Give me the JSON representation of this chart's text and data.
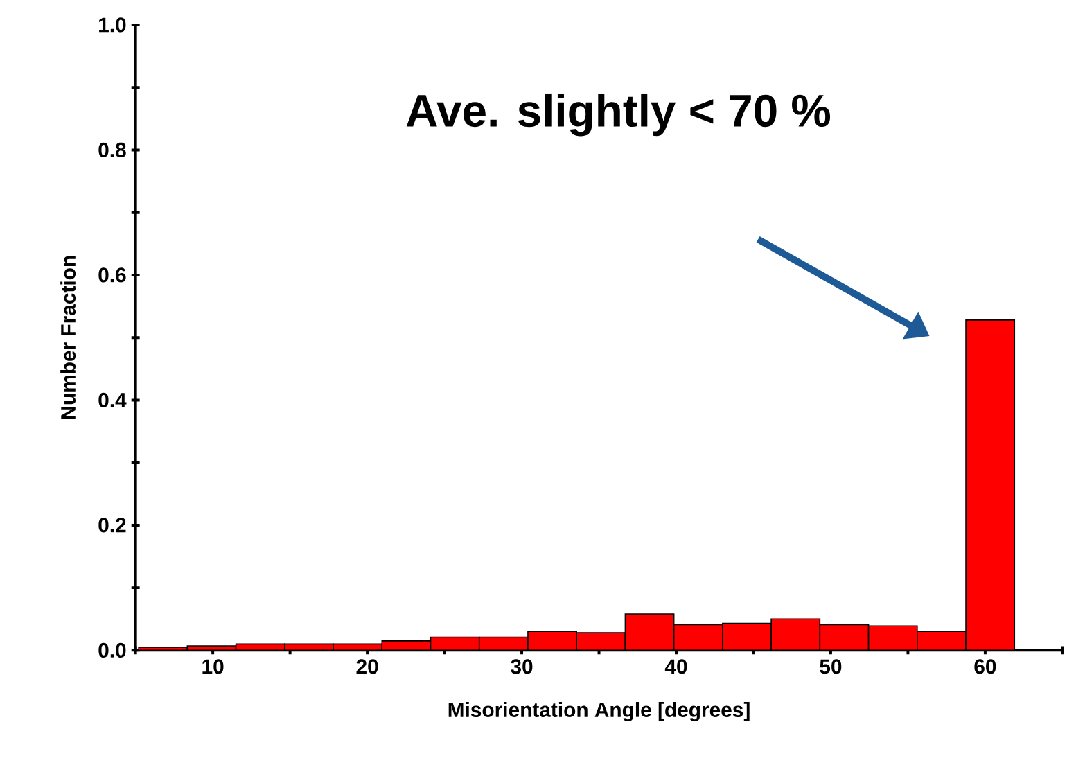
{
  "chart_data": {
    "type": "histogram",
    "xlabel": "Misorientation Angle [degrees]",
    "ylabel": "Number Fraction",
    "annotations": [
      "Ave. slightly < 70 %"
    ],
    "bins": [
      5.2,
      8.35,
      11.5,
      14.65,
      17.8,
      20.95,
      24.1,
      27.25,
      30.4,
      33.55,
      36.7,
      39.85,
      43.0,
      46.15,
      49.3,
      52.45,
      55.6,
      58.75,
      61.9
    ],
    "values": [
      0.005,
      0.007,
      0.01,
      0.01,
      0.01,
      0.015,
      0.021,
      0.021,
      0.03,
      0.028,
      0.058,
      0.041,
      0.043,
      0.05,
      0.041,
      0.039,
      0.03,
      0.528
    ],
    "color": "#ff0000",
    "xlim": [
      5,
      65
    ],
    "xticks": [
      {
        "value": 5,
        "label": null
      },
      10,
      {
        "value": 15,
        "label": null
      },
      20,
      {
        "value": 25,
        "label": null
      },
      30,
      {
        "value": 35,
        "label": null
      },
      40,
      {
        "value": 45,
        "label": null
      },
      50,
      {
        "value": 55,
        "label": null
      },
      60,
      {
        "value": 65,
        "label": null
      }
    ],
    "ylim": [
      0,
      1.0
    ],
    "yticks": [
      {
        "value": 0,
        "label": "0.0"
      },
      {
        "value": 0.1,
        "label": null
      },
      {
        "value": 0.2,
        "label": "0.2"
      },
      {
        "value": 0.3,
        "label": null
      },
      {
        "value": 0.4,
        "label": "0.4"
      },
      {
        "value": 0.5,
        "label": null
      },
      {
        "value": 0.6,
        "label": "0.6"
      },
      {
        "value": 0.7,
        "label": null
      },
      {
        "value": 0.8,
        "label": "0.8"
      },
      {
        "value": 0.9,
        "label": null
      },
      {
        "value": 1.0,
        "label": "1.0"
      }
    ]
  }
}
